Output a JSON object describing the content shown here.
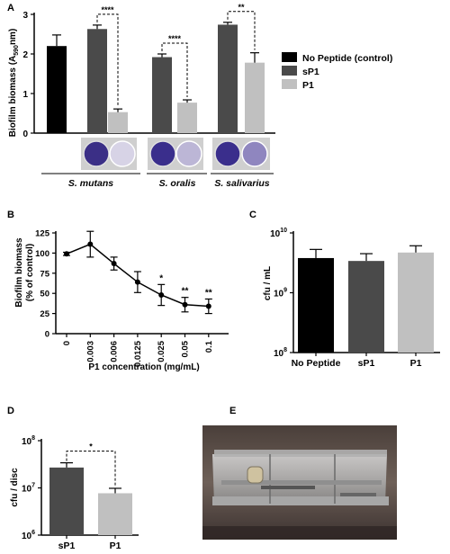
{
  "panel_letters": [
    "A",
    "B",
    "C",
    "D",
    "E"
  ],
  "chart_data": [
    {
      "panel": "A",
      "type": "bar",
      "ylabel": "Biofilm biomass (A590nm)",
      "ylabel_main": "Biofilm biomass (A",
      "ylabel_sub": "590",
      "ylabel_end": "nm)",
      "ylim": [
        0,
        3
      ],
      "yticks": [
        "0",
        "1",
        "2",
        "3"
      ],
      "groups": [
        "S. mutans",
        "S. oralis",
        "S. salivarius"
      ],
      "series": [
        {
          "name": "No Peptide (control)",
          "color": "#000000",
          "values": [
            2.2,
            null,
            null
          ],
          "errors": [
            0.28,
            null,
            null
          ]
        },
        {
          "name": "sP1",
          "color": "#4a4a4a",
          "values": [
            2.63,
            1.92,
            2.74
          ],
          "errors": [
            0.1,
            0.08,
            0.06
          ]
        },
        {
          "name": "P1",
          "color": "#c0c0c0",
          "values": [
            0.53,
            0.77,
            1.78
          ],
          "errors": [
            0.08,
            0.07,
            0.25
          ]
        }
      ],
      "significance": [
        "****",
        "****",
        "**"
      ],
      "legend_position": "right"
    },
    {
      "panel": "B",
      "type": "line",
      "xlabel": "P1 concentration (mg/mL)",
      "ylabel_line1": "Biofilm biomass",
      "ylabel_line2": "(% of control)",
      "categories": [
        "0",
        "0.003",
        "0.006",
        "0.0125",
        "0.025",
        "0.05",
        "0.1"
      ],
      "values": [
        99,
        111,
        87,
        64,
        48,
        36,
        34
      ],
      "errors": [
        2,
        16,
        8,
        13,
        13,
        9,
        9
      ],
      "significance": [
        "",
        "",
        "",
        "",
        "*",
        "**",
        "**"
      ],
      "ylim": [
        0,
        125
      ],
      "yticks": [
        "0",
        "25",
        "50",
        "75",
        "100",
        "125"
      ]
    },
    {
      "panel": "C",
      "type": "bar",
      "ylabel": "cfu / mL",
      "yscale": "log",
      "ylim": [
        100000000,
        10000000000
      ],
      "ytick_base": "10",
      "ytick_exponents": [
        "8",
        "9",
        "10"
      ],
      "categories": [
        "No Peptide",
        "sP1",
        "P1"
      ],
      "values": [
        3800000000,
        3400000000,
        4700000000
      ],
      "err_high": [
        5300000000,
        4500000000,
        6100000000
      ],
      "colors": [
        "#000000",
        "#4a4a4a",
        "#c0c0c0"
      ]
    },
    {
      "panel": "D",
      "type": "bar",
      "ylabel": "cfu / disc",
      "yscale": "log",
      "ylim": [
        1000000,
        100000000
      ],
      "ytick_base": "10",
      "ytick_exponents": [
        "6",
        "7",
        "8"
      ],
      "categories": [
        "sP1",
        "P1"
      ],
      "values": [
        27000000,
        7700000
      ],
      "err_high": [
        34000000,
        9800000
      ],
      "colors": [
        "#4a4a4a",
        "#c0c0c0"
      ],
      "significance": "*"
    }
  ]
}
